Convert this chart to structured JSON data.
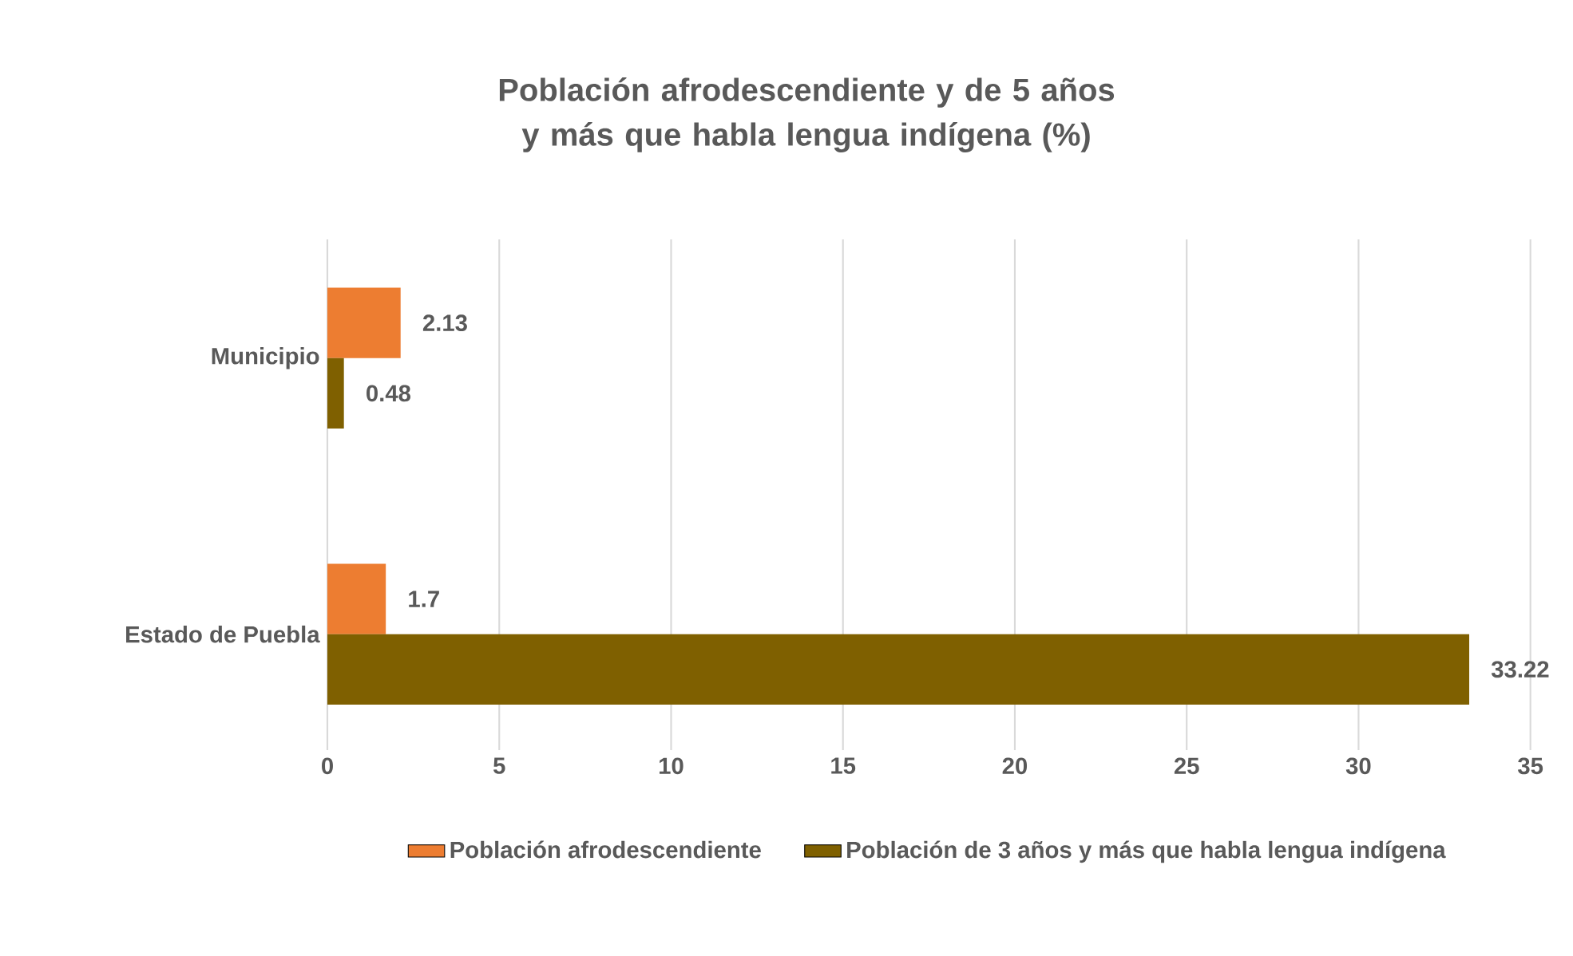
{
  "chart_data": {
    "type": "bar",
    "orientation": "horizontal",
    "title": "Población afrodescendiente y de 5 años y más que habla lengua indígena (%)",
    "categories": [
      "Municipio",
      "Estado de Puebla"
    ],
    "series": [
      {
        "name": "Población afrodescendiente",
        "color": "#ed7d31",
        "values": [
          2.13,
          1.7
        ]
      },
      {
        "name": "Población de 3 años y más que habla lengua indígena",
        "color": "#7f6000",
        "values": [
          0.48,
          33.22
        ]
      }
    ],
    "xlim": [
      0,
      35
    ],
    "xticks": [
      0,
      5,
      10,
      15,
      20,
      25,
      30,
      35
    ],
    "grid": "x",
    "legend": "bottom",
    "data_labels": true
  }
}
